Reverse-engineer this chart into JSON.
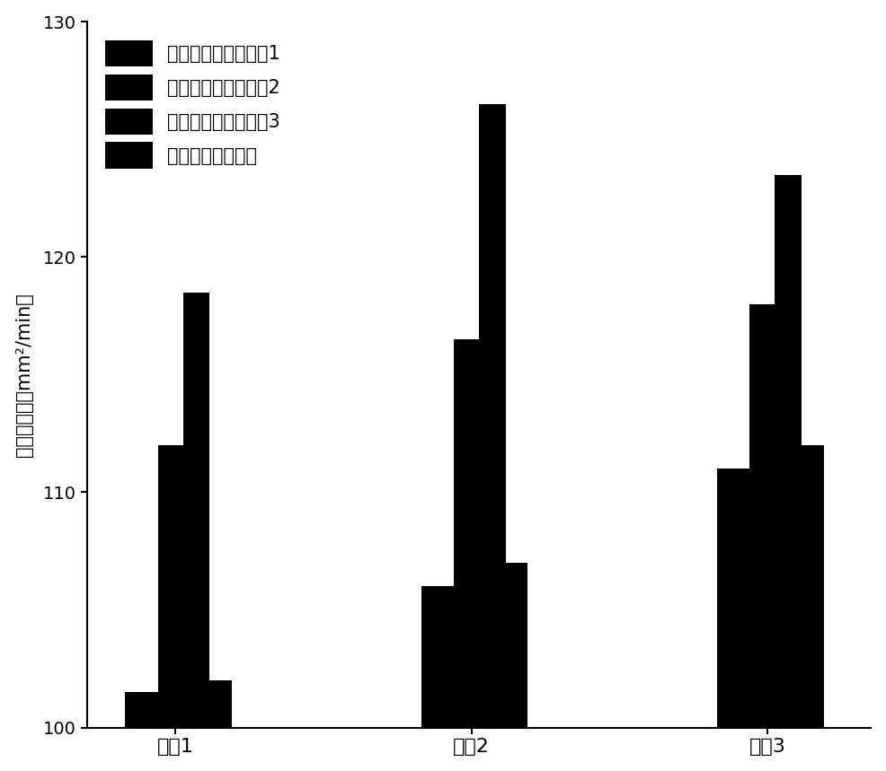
{
  "categories": [
    "参数1",
    "参数2",
    "参数3"
  ],
  "series": [
    {
      "label": "能量非均匀分布形式1",
      "values": [
        101.5,
        106.0,
        111.0
      ]
    },
    {
      "label": "能量非均匀分布形式2",
      "values": [
        112.0,
        116.5,
        118.0
      ]
    },
    {
      "label": "能量非均匀分布形式3",
      "values": [
        118.5,
        126.5,
        123.5
      ]
    },
    {
      "label": "能量均匀分布形式",
      "values": [
        102.0,
        107.0,
        112.0
      ]
    }
  ],
  "bar_color": "#000000",
  "ylabel": "加工效率／（mm²/min）",
  "ylim": [
    100,
    130
  ],
  "yticks": [
    100,
    110,
    120,
    130
  ],
  "background_color": "#ffffff",
  "legend_loc": "upper left",
  "font_size": 15,
  "tick_font_size": 14
}
